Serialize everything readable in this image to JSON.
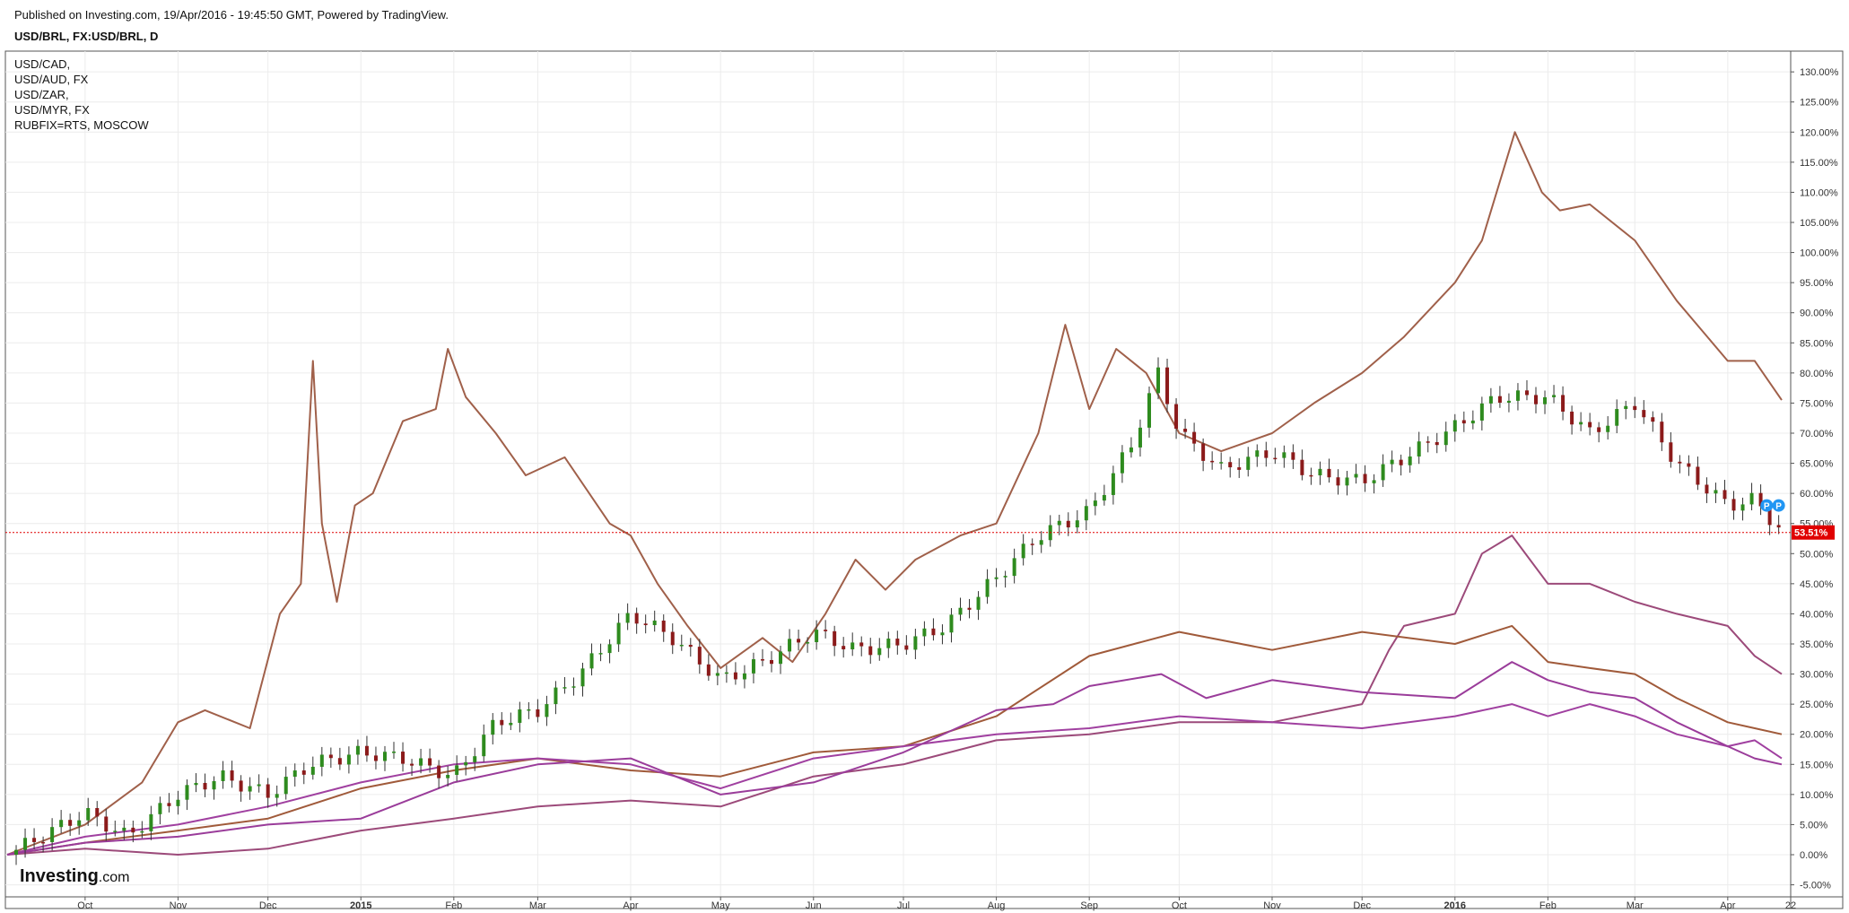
{
  "header": {
    "published": "Published on Investing.com, 19/Apr/2016 - 19:45:50 GMT, Powered by TradingView.",
    "symbol": "USD/BRL, FX:USD/BRL, D"
  },
  "logo": {
    "brand": "Investing",
    "suffix": ".com"
  },
  "legend": [
    "USD/CAD,",
    "USD/AUD, FX",
    "USD/ZAR,",
    "USD/MYR, FX",
    "RUBFIX=RTS, MOSCOW"
  ],
  "colors": {
    "candle_up": "#2e8b1e",
    "candle_down": "#8b1a1a",
    "rub": "#a0604a",
    "zar": "#9c4a7a",
    "cad": "#a05a3a",
    "aud": "#a040a0",
    "myr": "#9a3c9a",
    "price_line": "#e00000",
    "pin": "#2196f3"
  },
  "chart_data": {
    "type": "line",
    "title": "USD/BRL, FX:USD/BRL, D",
    "y_unit": "%",
    "ylim": [
      -7,
      133
    ],
    "yticks": [
      "130.00%",
      "125.00%",
      "120.00%",
      "115.00%",
      "110.00%",
      "105.00%",
      "100.00%",
      "95.00%",
      "90.00%",
      "85.00%",
      "80.00%",
      "75.00%",
      "70.00%",
      "65.00%",
      "60.00%",
      "55.00%",
      "50.00%",
      "45.00%",
      "40.00%",
      "35.00%",
      "30.00%",
      "25.00%",
      "20.00%",
      "15.00%",
      "10.00%",
      "5.00%",
      "0.00%",
      "-5.00%"
    ],
    "ytick_values": [
      130,
      125,
      120,
      115,
      110,
      105,
      100,
      95,
      90,
      85,
      80,
      75,
      70,
      65,
      60,
      55,
      50,
      45,
      40,
      35,
      30,
      25,
      20,
      15,
      10,
      5,
      0,
      -5
    ],
    "xlim": [
      "2014-09-05",
      "2016-04-22"
    ],
    "xticks": [
      {
        "label": "Oct",
        "date": "2014-10-01",
        "bold": false
      },
      {
        "label": "Nov",
        "date": "2014-11-01",
        "bold": false
      },
      {
        "label": "Dec",
        "date": "2014-12-01",
        "bold": false
      },
      {
        "label": "2015",
        "date": "2015-01-01",
        "bold": true
      },
      {
        "label": "Feb",
        "date": "2015-02-01",
        "bold": false
      },
      {
        "label": "Mar",
        "date": "2015-03-01",
        "bold": false
      },
      {
        "label": "Apr",
        "date": "2015-04-01",
        "bold": false
      },
      {
        "label": "May",
        "date": "2015-05-01",
        "bold": false
      },
      {
        "label": "Jun",
        "date": "2015-06-01",
        "bold": false
      },
      {
        "label": "Jul",
        "date": "2015-07-01",
        "bold": false
      },
      {
        "label": "Aug",
        "date": "2015-08-01",
        "bold": false
      },
      {
        "label": "Sep",
        "date": "2015-09-01",
        "bold": false
      },
      {
        "label": "Oct",
        "date": "2015-10-01",
        "bold": false
      },
      {
        "label": "Nov",
        "date": "2015-11-01",
        "bold": false
      },
      {
        "label": "Dec",
        "date": "2015-12-01",
        "bold": false
      },
      {
        "label": "2016",
        "date": "2016-01-01",
        "bold": true
      },
      {
        "label": "Feb",
        "date": "2016-02-01",
        "bold": false
      },
      {
        "label": "Mar",
        "date": "2016-03-01",
        "bold": false
      },
      {
        "label": "Apr",
        "date": "2016-04-01",
        "bold": false
      },
      {
        "label": "22",
        "date": "2016-04-22",
        "bold": false
      }
    ],
    "grid": true,
    "last_value_label": "53.51%",
    "last_value": 53.51,
    "pins": [
      {
        "label": "P",
        "date": "2016-04-14",
        "value": 58
      },
      {
        "label": "P",
        "date": "2016-04-18",
        "value": 58
      }
    ],
    "series": [
      {
        "name": "USD/BRL",
        "style": "candles",
        "x": [
          "2014-09-05",
          "2014-09-20",
          "2014-10-01",
          "2014-10-15",
          "2014-11-01",
          "2014-11-15",
          "2014-12-01",
          "2014-12-15",
          "2015-01-01",
          "2015-01-15",
          "2015-02-01",
          "2015-02-15",
          "2015-03-01",
          "2015-03-15",
          "2015-04-01",
          "2015-04-15",
          "2015-05-01",
          "2015-05-15",
          "2015-06-01",
          "2015-06-15",
          "2015-07-01",
          "2015-07-15",
          "2015-08-01",
          "2015-08-15",
          "2015-09-01",
          "2015-09-15",
          "2015-09-24",
          "2015-10-01",
          "2015-10-15",
          "2015-11-01",
          "2015-11-15",
          "2015-12-01",
          "2015-12-15",
          "2016-01-01",
          "2016-01-15",
          "2016-02-01",
          "2016-02-15",
          "2016-03-01",
          "2016-03-15",
          "2016-04-01",
          "2016-04-10",
          "2016-04-19"
        ],
        "values": [
          0,
          4,
          7,
          3,
          10,
          13,
          10,
          15,
          17,
          16,
          13,
          22,
          24,
          30,
          40,
          36,
          29,
          32,
          37,
          34,
          35,
          38,
          46,
          53,
          57,
          68,
          80,
          70,
          64,
          67,
          63,
          62,
          66,
          71,
          76,
          76,
          70,
          75,
          65,
          58,
          59,
          53.51
        ]
      },
      {
        "name": "RUBFIX",
        "style": "line",
        "x": [
          "2014-09-05",
          "2014-10-01",
          "2014-10-20",
          "2014-11-01",
          "2014-11-10",
          "2014-11-25",
          "2014-12-05",
          "2014-12-12",
          "2014-12-16",
          "2014-12-19",
          "2014-12-24",
          "2014-12-30",
          "2015-01-05",
          "2015-01-15",
          "2015-01-26",
          "2015-01-30",
          "2015-02-05",
          "2015-02-15",
          "2015-02-25",
          "2015-03-10",
          "2015-03-25",
          "2015-04-01",
          "2015-04-10",
          "2015-04-20",
          "2015-05-01",
          "2015-05-15",
          "2015-05-25",
          "2015-06-05",
          "2015-06-15",
          "2015-06-25",
          "2015-07-05",
          "2015-07-20",
          "2015-08-01",
          "2015-08-15",
          "2015-08-24",
          "2015-09-01",
          "2015-09-10",
          "2015-09-20",
          "2015-10-01",
          "2015-10-15",
          "2015-11-01",
          "2015-11-15",
          "2015-12-01",
          "2015-12-15",
          "2016-01-01",
          "2016-01-10",
          "2016-01-21",
          "2016-01-30",
          "2016-02-05",
          "2016-02-15",
          "2016-03-01",
          "2016-03-15",
          "2016-04-01",
          "2016-04-10",
          "2016-04-19"
        ],
        "values": [
          0,
          5,
          12,
          22,
          24,
          21,
          40,
          45,
          82,
          55,
          42,
          58,
          60,
          72,
          74,
          84,
          76,
          70,
          63,
          66,
          55,
          53,
          45,
          38,
          31,
          36,
          32,
          40,
          49,
          44,
          49,
          53,
          55,
          70,
          88,
          74,
          84,
          80,
          70,
          67,
          70,
          75,
          80,
          86,
          95,
          102,
          120,
          110,
          107,
          108,
          102,
          92,
          82,
          82,
          75.5
        ]
      },
      {
        "name": "USD/ZAR",
        "style": "line",
        "x": [
          "2014-09-05",
          "2014-10-01",
          "2014-11-01",
          "2014-12-01",
          "2015-01-01",
          "2015-02-01",
          "2015-03-01",
          "2015-04-01",
          "2015-05-01",
          "2015-06-01",
          "2015-07-01",
          "2015-08-01",
          "2015-09-01",
          "2015-10-01",
          "2015-11-01",
          "2015-12-01",
          "2015-12-10",
          "2015-12-15",
          "2016-01-01",
          "2016-01-10",
          "2016-01-20",
          "2016-02-01",
          "2016-02-15",
          "2016-03-01",
          "2016-03-15",
          "2016-04-01",
          "2016-04-10",
          "2016-04-19"
        ],
        "values": [
          0,
          1,
          0,
          1,
          4,
          6,
          8,
          9,
          8,
          13,
          15,
          19,
          20,
          22,
          22,
          25,
          34,
          38,
          40,
          50,
          53,
          45,
          45,
          42,
          40,
          38,
          33,
          30
        ]
      },
      {
        "name": "USD/CAD",
        "style": "line",
        "x": [
          "2014-09-05",
          "2014-10-01",
          "2014-11-01",
          "2014-12-01",
          "2015-01-01",
          "2015-02-01",
          "2015-03-01",
          "2015-04-01",
          "2015-05-01",
          "2015-06-01",
          "2015-07-01",
          "2015-08-01",
          "2015-09-01",
          "2015-10-01",
          "2015-11-01",
          "2015-12-01",
          "2016-01-01",
          "2016-01-20",
          "2016-02-01",
          "2016-02-15",
          "2016-03-01",
          "2016-03-15",
          "2016-04-01",
          "2016-04-10",
          "2016-04-19"
        ],
        "values": [
          0,
          2,
          4,
          6,
          11,
          14,
          16,
          14,
          13,
          17,
          18,
          23,
          33,
          37,
          34,
          37,
          35,
          38,
          32,
          31,
          30,
          26,
          22,
          21,
          20
        ]
      },
      {
        "name": "USD/AUD",
        "style": "line",
        "x": [
          "2014-09-05",
          "2014-10-01",
          "2014-11-01",
          "2014-12-01",
          "2015-01-01",
          "2015-02-01",
          "2015-03-01",
          "2015-04-01",
          "2015-05-01",
          "2015-06-01",
          "2015-07-01",
          "2015-08-01",
          "2015-09-01",
          "2015-10-01",
          "2015-11-01",
          "2015-12-01",
          "2016-01-01",
          "2016-01-20",
          "2016-02-01",
          "2016-02-15",
          "2016-03-01",
          "2016-03-15",
          "2016-04-01",
          "2016-04-10",
          "2016-04-19"
        ],
        "values": [
          0,
          3,
          5,
          8,
          12,
          15,
          16,
          15,
          11,
          16,
          18,
          20,
          21,
          23,
          22,
          21,
          23,
          25,
          23,
          25,
          23,
          20,
          18,
          19,
          16
        ]
      },
      {
        "name": "USD/MYR",
        "style": "line",
        "x": [
          "2014-09-05",
          "2014-10-01",
          "2014-11-01",
          "2014-12-01",
          "2015-01-01",
          "2015-02-01",
          "2015-03-01",
          "2015-04-01",
          "2015-05-01",
          "2015-06-01",
          "2015-07-01",
          "2015-08-01",
          "2015-08-20",
          "2015-09-01",
          "2015-09-25",
          "2015-10-10",
          "2015-11-01",
          "2015-12-01",
          "2016-01-01",
          "2016-01-20",
          "2016-02-01",
          "2016-02-15",
          "2016-03-01",
          "2016-03-15",
          "2016-04-01",
          "2016-04-10",
          "2016-04-19"
        ],
        "values": [
          0,
          2,
          3,
          5,
          6,
          12,
          15,
          16,
          10,
          12,
          17,
          24,
          25,
          28,
          30,
          26,
          29,
          27,
          26,
          32,
          29,
          27,
          26,
          22,
          18,
          16,
          15
        ]
      }
    ]
  }
}
